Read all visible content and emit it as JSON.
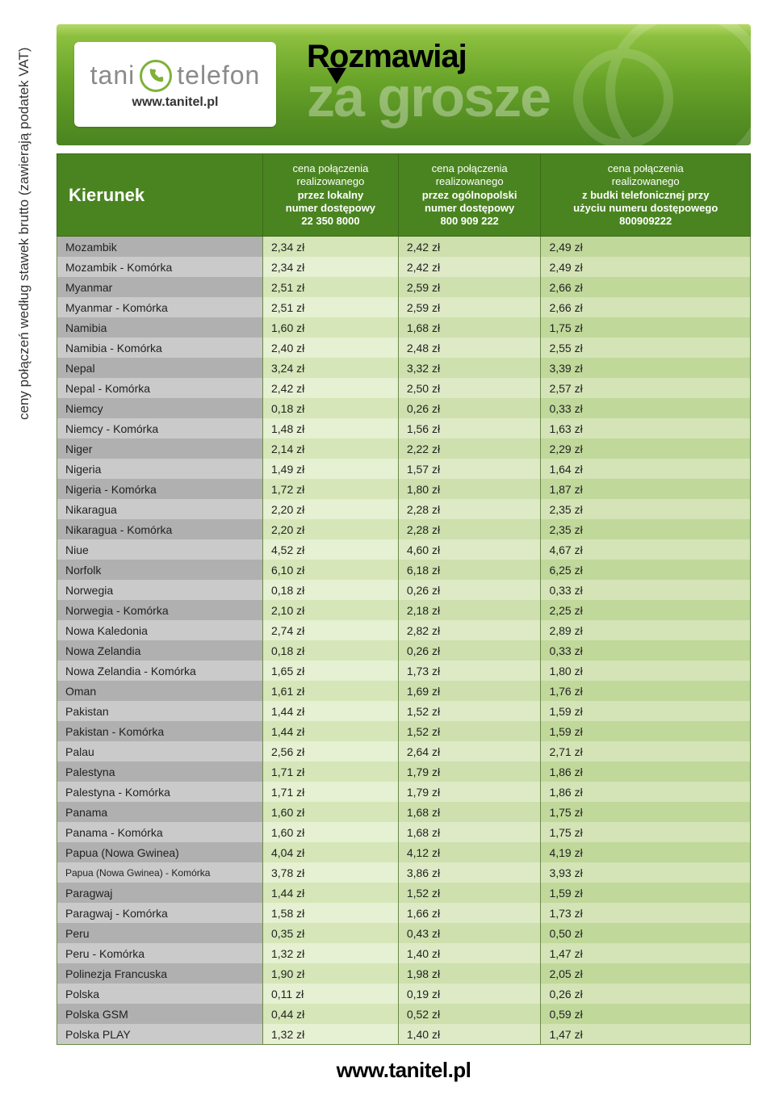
{
  "banner": {
    "logo_left": "tani",
    "logo_right": "telefon",
    "logo_url": "www.tanitel.pl",
    "line1": "Rozmawiaj",
    "line2": "za grosze"
  },
  "side_label": "ceny połączeń według stawek brutto (zawierają podatek VAT)",
  "footer_url": "www.tanitel.pl",
  "header": {
    "kierunek": "Kierunek",
    "col1_l1": "cena połączenia",
    "col1_l2": "realizowanego",
    "col1_l3": "przez lokalny",
    "col1_l4": "numer dostępowy",
    "col1_num": "22 350 8000",
    "col2_l1": "cena połączenia",
    "col2_l2": "realizowanego",
    "col2_l3": "przez ogólnopolski",
    "col2_l4": "numer dostępowy",
    "col2_num": "800 909 222",
    "col3_l1": "cena połączenia",
    "col3_l2": "realizowanego",
    "col3_l3": "z budki telefonicznej przy",
    "col3_l4": "użyciu numeru dostępowego",
    "col3_num": "800909222"
  },
  "rows": [
    {
      "dest": "Mozambik",
      "p1": "2,34 zł",
      "p2": "2,42 zł",
      "p3": "2,49 zł"
    },
    {
      "dest": "Mozambik - Komórka",
      "p1": "2,34 zł",
      "p2": "2,42 zł",
      "p3": "2,49 zł"
    },
    {
      "dest": "Myanmar",
      "p1": "2,51 zł",
      "p2": "2,59 zł",
      "p3": "2,66 zł"
    },
    {
      "dest": "Myanmar - Komórka",
      "p1": "2,51 zł",
      "p2": "2,59 zł",
      "p3": "2,66 zł"
    },
    {
      "dest": "Namibia",
      "p1": "1,60 zł",
      "p2": "1,68 zł",
      "p3": "1,75 zł"
    },
    {
      "dest": "Namibia - Komórka",
      "p1": "2,40 zł",
      "p2": "2,48 zł",
      "p3": "2,55 zł"
    },
    {
      "dest": "Nepal",
      "p1": "3,24 zł",
      "p2": "3,32 zł",
      "p3": "3,39 zł"
    },
    {
      "dest": "Nepal - Komórka",
      "p1": "2,42 zł",
      "p2": "2,50 zł",
      "p3": "2,57 zł"
    },
    {
      "dest": "Niemcy",
      "p1": "0,18 zł",
      "p2": "0,26 zł",
      "p3": "0,33 zł"
    },
    {
      "dest": "Niemcy - Komórka",
      "p1": "1,48 zł",
      "p2": "1,56 zł",
      "p3": "1,63 zł"
    },
    {
      "dest": "Niger",
      "p1": "2,14 zł",
      "p2": "2,22 zł",
      "p3": "2,29 zł"
    },
    {
      "dest": "Nigeria",
      "p1": "1,49 zł",
      "p2": "1,57 zł",
      "p3": "1,64 zł"
    },
    {
      "dest": "Nigeria - Komórka",
      "p1": "1,72 zł",
      "p2": "1,80 zł",
      "p3": "1,87 zł"
    },
    {
      "dest": "Nikaragua",
      "p1": "2,20 zł",
      "p2": "2,28 zł",
      "p3": "2,35 zł"
    },
    {
      "dest": "Nikaragua - Komórka",
      "p1": "2,20 zł",
      "p2": "2,28 zł",
      "p3": "2,35 zł"
    },
    {
      "dest": "Niue",
      "p1": "4,52 zł",
      "p2": "4,60 zł",
      "p3": "4,67 zł"
    },
    {
      "dest": "Norfolk",
      "p1": "6,10 zł",
      "p2": "6,18 zł",
      "p3": "6,25 zł"
    },
    {
      "dest": "Norwegia",
      "p1": "0,18 zł",
      "p2": "0,26 zł",
      "p3": "0,33 zł"
    },
    {
      "dest": "Norwegia - Komórka",
      "p1": "2,10 zł",
      "p2": "2,18 zł",
      "p3": "2,25 zł"
    },
    {
      "dest": "Nowa Kaledonia",
      "p1": "2,74 zł",
      "p2": "2,82 zł",
      "p3": "2,89 zł"
    },
    {
      "dest": "Nowa Zelandia",
      "p1": "0,18 zł",
      "p2": "0,26 zł",
      "p3": "0,33 zł"
    },
    {
      "dest": "Nowa Zelandia - Komórka",
      "p1": "1,65 zł",
      "p2": "1,73 zł",
      "p3": "1,80 zł"
    },
    {
      "dest": "Oman",
      "p1": "1,61 zł",
      "p2": "1,69 zł",
      "p3": "1,76 zł"
    },
    {
      "dest": "Pakistan",
      "p1": "1,44 zł",
      "p2": "1,52 zł",
      "p3": "1,59 zł"
    },
    {
      "dest": "Pakistan - Komórka",
      "p1": "1,44 zł",
      "p2": "1,52 zł",
      "p3": "1,59 zł"
    },
    {
      "dest": "Palau",
      "p1": "2,56 zł",
      "p2": "2,64 zł",
      "p3": "2,71 zł"
    },
    {
      "dest": "Palestyna",
      "p1": "1,71 zł",
      "p2": "1,79 zł",
      "p3": "1,86 zł"
    },
    {
      "dest": "Palestyna - Komórka",
      "p1": "1,71 zł",
      "p2": "1,79 zł",
      "p3": "1,86 zł"
    },
    {
      "dest": "Panama",
      "p1": "1,60 zł",
      "p2": "1,68 zł",
      "p3": "1,75 zł"
    },
    {
      "dest": "Panama - Komórka",
      "p1": "1,60 zł",
      "p2": "1,68 zł",
      "p3": "1,75 zł"
    },
    {
      "dest": "Papua (Nowa Gwinea)",
      "p1": "4,04 zł",
      "p2": "4,12 zł",
      "p3": "4,19 zł"
    },
    {
      "dest": "Papua (Nowa Gwinea) - Komórka",
      "p1": "3,78 zł",
      "p2": "3,86 zł",
      "p3": "3,93 zł",
      "small": true
    },
    {
      "dest": "Paragwaj",
      "p1": "1,44 zł",
      "p2": "1,52 zł",
      "p3": "1,59 zł"
    },
    {
      "dest": "Paragwaj - Komórka",
      "p1": "1,58 zł",
      "p2": "1,66 zł",
      "p3": "1,73 zł"
    },
    {
      "dest": "Peru",
      "p1": "0,35 zł",
      "p2": "0,43 zł",
      "p3": "0,50 zł"
    },
    {
      "dest": "Peru - Komórka",
      "p1": "1,32 zł",
      "p2": "1,40 zł",
      "p3": "1,47 zł"
    },
    {
      "dest": "Polinezja Francuska",
      "p1": "1,90 zł",
      "p2": "1,98 zł",
      "p3": "2,05 zł"
    },
    {
      "dest": "Polska",
      "p1": "0,11 zł",
      "p2": "0,19 zł",
      "p3": "0,26 zł"
    },
    {
      "dest": "Polska GSM",
      "p1": "0,44 zł",
      "p2": "0,52 zł",
      "p3": "0,59 zł"
    },
    {
      "dest": "Polska PLAY",
      "p1": "1,32 zł",
      "p2": "1,40 zł",
      "p3": "1,47 zł"
    }
  ],
  "colors": {
    "header_bg": "#4a8420",
    "header_border": "#3a6a18",
    "row_a_dest": "#b0b0b0",
    "row_b_dest": "#cacaca",
    "row_a_p1": "#d6e6b8",
    "row_a_p2": "#cde0ad",
    "row_a_p3": "#c0d89a",
    "row_b_p1": "#e6f0d2",
    "row_b_p2": "#deeac6",
    "row_b_p3": "#d4e4b6",
    "cell_border": "#6a8a4a"
  }
}
